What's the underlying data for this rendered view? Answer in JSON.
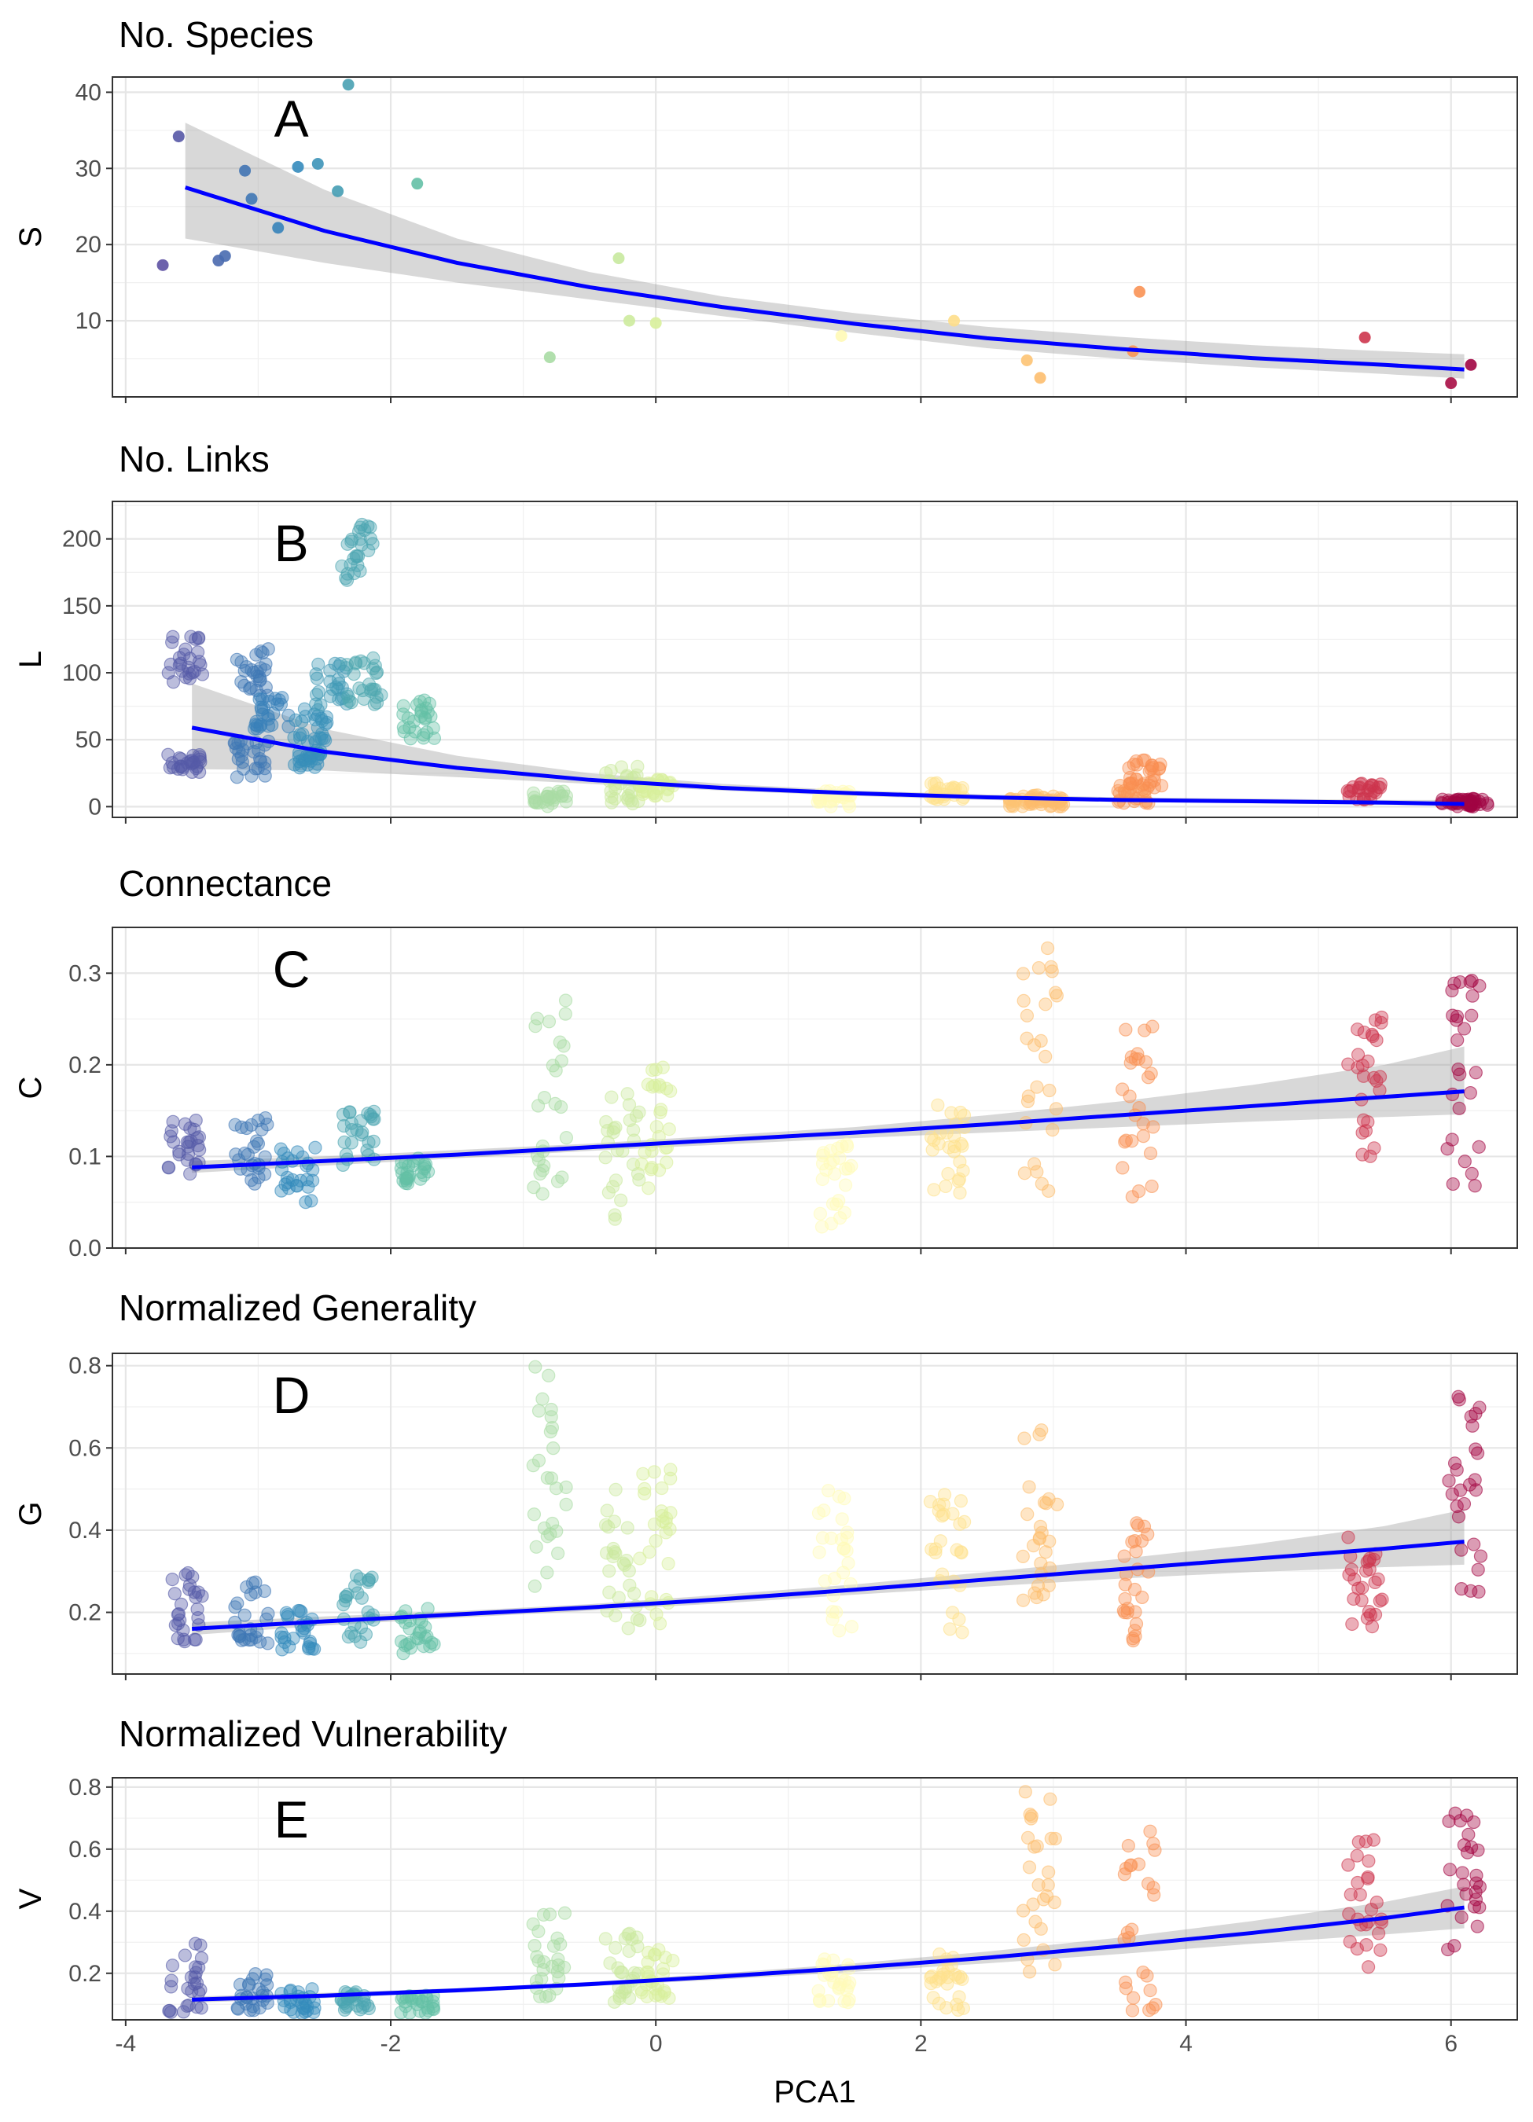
{
  "chart_data": [
    {
      "type": "scatter",
      "panel": "A",
      "title": "No. Species",
      "ylabel": "S",
      "xlabel": "",
      "xlim": [
        -4.1,
        6.5
      ],
      "ylim": [
        0,
        42
      ],
      "yticks": [
        10,
        20,
        30,
        40
      ],
      "xticks": [
        -4,
        -2,
        0,
        2,
        4,
        6
      ],
      "grid": true,
      "x_tick_labels_shown": false,
      "smooth": {
        "x": [
          -3.55,
          -2.5,
          -1.5,
          -0.5,
          0.5,
          1.5,
          2.5,
          3.5,
          4.5,
          5.5,
          6.1
        ],
        "y": [
          27.5,
          21.8,
          17.6,
          14.4,
          11.8,
          9.6,
          7.7,
          6.3,
          5.1,
          4.2,
          3.6
        ],
        "lower": [
          20.8,
          17.6,
          15.0,
          12.8,
          10.6,
          8.4,
          6.4,
          5.0,
          3.9,
          3.0,
          2.4
        ],
        "upper": [
          36.0,
          27.2,
          20.8,
          16.4,
          13.2,
          11.0,
          9.2,
          7.9,
          6.8,
          6.0,
          5.6
        ],
        "color": "#0000ff"
      },
      "points": [
        [
          -3.72,
          17.3
        ],
        [
          -3.6,
          34.2
        ],
        [
          -3.3,
          17.9
        ],
        [
          -3.25,
          18.5
        ],
        [
          -3.1,
          29.7
        ],
        [
          -3.05,
          26.0
        ],
        [
          -2.85,
          22.2
        ],
        [
          -2.7,
          30.2
        ],
        [
          -2.55,
          30.6
        ],
        [
          -2.4,
          27.0
        ],
        [
          -2.32,
          41.0
        ],
        [
          -1.8,
          28.0
        ],
        [
          -0.8,
          5.2
        ],
        [
          -0.28,
          18.2
        ],
        [
          -0.2,
          10.0
        ],
        [
          0.0,
          9.7
        ],
        [
          1.4,
          8.0
        ],
        [
          2.25,
          10.0
        ],
        [
          2.8,
          4.8
        ],
        [
          2.9,
          2.5
        ],
        [
          3.6,
          6.0
        ],
        [
          3.65,
          13.8
        ],
        [
          5.35,
          7.8
        ],
        [
          6.0,
          1.8
        ],
        [
          6.15,
          4.2
        ]
      ]
    },
    {
      "type": "scatter",
      "panel": "B",
      "title": "No. Links",
      "ylabel": "L",
      "xlabel": "",
      "xlim": [
        -4.1,
        6.5
      ],
      "ylim": [
        -8,
        228
      ],
      "yticks": [
        0,
        50,
        100,
        150,
        200
      ],
      "xticks": [
        -4,
        -2,
        0,
        2,
        4,
        6
      ],
      "grid": true,
      "x_tick_labels_shown": false,
      "smooth": {
        "x": [
          -3.5,
          -2.5,
          -1.5,
          -0.5,
          0.5,
          1.5,
          2.5,
          3.5,
          4.5,
          5.5,
          6.1
        ],
        "y": [
          59,
          41,
          29,
          20,
          14,
          10,
          7,
          5,
          4,
          3,
          2
        ],
        "lower": [
          28,
          27,
          22,
          17,
          12,
          8,
          5,
          3.5,
          2.5,
          1.5,
          0.5
        ],
        "upper": [
          92,
          58,
          38,
          25,
          17,
          12,
          9,
          7,
          6,
          5,
          5
        ],
        "color": "#0000ff"
      },
      "clusters": [
        {
          "x": -3.55,
          "y_range": [
            25,
            40
          ]
        },
        {
          "x": -3.55,
          "y_range": [
            90,
            130
          ]
        },
        {
          "x": -3.05,
          "y_range": [
            22,
            50
          ]
        },
        {
          "x": -3.05,
          "y_range": [
            82,
            118
          ]
        },
        {
          "x": -2.9,
          "y_range": [
            58,
            82
          ]
        },
        {
          "x": -2.65,
          "y_range": [
            28,
            42
          ]
        },
        {
          "x": -2.6,
          "y_range": [
            48,
            75
          ]
        },
        {
          "x": -2.45,
          "y_range": [
            75,
            108
          ]
        },
        {
          "x": -2.2,
          "y_range": [
            76,
            112
          ]
        },
        {
          "x": -2.25,
          "y_range": [
            168,
            218
          ]
        },
        {
          "x": -1.8,
          "y_range": [
            50,
            80
          ]
        },
        {
          "x": -0.8,
          "y_range": [
            0,
            12
          ]
        },
        {
          "x": -0.25,
          "y_range": [
            2,
            30
          ]
        },
        {
          "x": 0.0,
          "y_range": [
            8,
            22
          ]
        },
        {
          "x": 1.35,
          "y_range": [
            0,
            12
          ]
        },
        {
          "x": 2.2,
          "y_range": [
            5,
            18
          ]
        },
        {
          "x": 2.8,
          "y_range": [
            0,
            10
          ]
        },
        {
          "x": 2.95,
          "y_range": [
            0,
            8
          ]
        },
        {
          "x": 3.6,
          "y_range": [
            2,
            18
          ]
        },
        {
          "x": 3.7,
          "y_range": [
            12,
            35
          ]
        },
        {
          "x": 5.35,
          "y_range": [
            5,
            18
          ]
        },
        {
          "x": 6.05,
          "y_range": [
            0,
            6
          ]
        },
        {
          "x": 6.15,
          "y_range": [
            0,
            6
          ]
        }
      ]
    },
    {
      "type": "scatter",
      "panel": "C",
      "title": "Connectance",
      "ylabel": "C",
      "xlabel": "",
      "xlim": [
        -4.1,
        6.5
      ],
      "ylim": [
        0,
        0.35
      ],
      "yticks": [
        0.0,
        0.1,
        0.2,
        0.3
      ],
      "ytick_labels": [
        "0.0",
        "0.1",
        "0.2",
        "0.3"
      ],
      "xticks": [
        -4,
        -2,
        0,
        2,
        4,
        6
      ],
      "grid": true,
      "x_tick_labels_shown": false,
      "smooth": {
        "x": [
          -3.5,
          -2.5,
          -1.5,
          -0.5,
          0.5,
          1.5,
          2.5,
          3.5,
          4.5,
          5.5,
          6.1
        ],
        "y": [
          0.088,
          0.095,
          0.102,
          0.11,
          0.118,
          0.126,
          0.135,
          0.145,
          0.155,
          0.165,
          0.171
        ],
        "lower": [
          0.082,
          0.09,
          0.098,
          0.106,
          0.113,
          0.12,
          0.126,
          0.132,
          0.138,
          0.143,
          0.146
        ],
        "upper": [
          0.095,
          0.1,
          0.107,
          0.114,
          0.123,
          0.132,
          0.145,
          0.16,
          0.178,
          0.2,
          0.22
        ],
        "color": "#0000ff"
      },
      "clusters": [
        {
          "x": -3.55,
          "y_range": [
            0.08,
            0.14
          ]
        },
        {
          "x": -3.05,
          "y_range": [
            0.07,
            0.145
          ]
        },
        {
          "x": -2.7,
          "y_range": [
            0.05,
            0.11
          ]
        },
        {
          "x": -2.25,
          "y_range": [
            0.09,
            0.15
          ]
        },
        {
          "x": -1.8,
          "y_range": [
            0.07,
            0.1
          ]
        },
        {
          "x": -0.8,
          "y_range": [
            0.04,
            0.28
          ]
        },
        {
          "x": -0.25,
          "y_range": [
            0.03,
            0.17
          ]
        },
        {
          "x": 0.0,
          "y_range": [
            0.06,
            0.2
          ]
        },
        {
          "x": 1.35,
          "y_range": [
            0.015,
            0.12
          ]
        },
        {
          "x": 2.2,
          "y_range": [
            0.06,
            0.16
          ]
        },
        {
          "x": 2.9,
          "y_range": [
            0.04,
            0.333
          ]
        },
        {
          "x": 3.65,
          "y_range": [
            0.055,
            0.25
          ]
        },
        {
          "x": 5.35,
          "y_range": [
            0.095,
            0.265
          ]
        },
        {
          "x": 6.1,
          "y_range": [
            0.0625,
            0.3125
          ]
        }
      ]
    },
    {
      "type": "scatter",
      "panel": "D",
      "title": "Normalized Generality",
      "ylabel": "G",
      "xlabel": "",
      "xlim": [
        -4.1,
        6.5
      ],
      "ylim": [
        0.05,
        0.83
      ],
      "yticks": [
        0.2,
        0.4,
        0.6,
        0.8
      ],
      "ytick_labels": [
        "0.2",
        "0.4",
        "0.6",
        "0.8"
      ],
      "xticks": [
        -4,
        -2,
        0,
        2,
        4,
        6
      ],
      "grid": true,
      "x_tick_labels_shown": false,
      "smooth": {
        "x": [
          -3.5,
          -2.5,
          -1.5,
          -0.5,
          0.5,
          1.5,
          2.5,
          3.5,
          4.5,
          5.5,
          6.1
        ],
        "y": [
          0.16,
          0.178,
          0.195,
          0.212,
          0.232,
          0.255,
          0.28,
          0.305,
          0.33,
          0.355,
          0.372
        ],
        "lower": [
          0.145,
          0.168,
          0.187,
          0.204,
          0.222,
          0.243,
          0.263,
          0.282,
          0.298,
          0.31,
          0.316
        ],
        "upper": [
          0.175,
          0.19,
          0.203,
          0.22,
          0.243,
          0.268,
          0.298,
          0.33,
          0.365,
          0.41,
          0.45
        ],
        "color": "#0000ff"
      },
      "clusters": [
        {
          "x": -3.55,
          "y_range": [
            0.12,
            0.3
          ]
        },
        {
          "x": -3.05,
          "y_range": [
            0.12,
            0.28
          ]
        },
        {
          "x": -2.7,
          "y_range": [
            0.1,
            0.22
          ]
        },
        {
          "x": -2.25,
          "y_range": [
            0.12,
            0.29
          ]
        },
        {
          "x": -1.8,
          "y_range": [
            0.1,
            0.22
          ]
        },
        {
          "x": -0.8,
          "y_range": [
            0.25,
            0.8
          ]
        },
        {
          "x": -0.25,
          "y_range": [
            0.1,
            0.5
          ]
        },
        {
          "x": 0.0,
          "y_range": [
            0.15,
            0.55
          ]
        },
        {
          "x": 1.35,
          "y_range": [
            0.125,
            0.5
          ]
        },
        {
          "x": 2.2,
          "y_range": [
            0.15,
            0.5
          ]
        },
        {
          "x": 2.9,
          "y_range": [
            0.2,
            0.67
          ]
        },
        {
          "x": 3.65,
          "y_range": [
            0.12,
            0.42
          ]
        },
        {
          "x": 5.35,
          "y_range": [
            0.15,
            0.4
          ]
        },
        {
          "x": 6.1,
          "y_range": [
            0.25,
            0.75
          ]
        }
      ]
    },
    {
      "type": "scatter",
      "panel": "E",
      "title": "Normalized Vulnerability",
      "ylabel": "V",
      "xlabel": "PCA1",
      "xlim": [
        -4.1,
        6.5
      ],
      "ylim": [
        0.05,
        0.83
      ],
      "yticks": [
        0.2,
        0.4,
        0.6,
        0.8
      ],
      "ytick_labels": [
        "0.2",
        "0.4",
        "0.6",
        "0.8"
      ],
      "xticks": [
        -4,
        -2,
        0,
        2,
        4,
        6
      ],
      "xtick_labels": [
        "-4",
        "-2",
        "0",
        "2",
        "4",
        "6"
      ],
      "grid": true,
      "x_tick_labels_shown": true,
      "smooth": {
        "x": [
          -3.5,
          -2.5,
          -1.5,
          -0.5,
          0.5,
          1.5,
          2.5,
          3.5,
          4.5,
          5.5,
          6.1
        ],
        "y": [
          0.115,
          0.128,
          0.145,
          0.165,
          0.19,
          0.218,
          0.25,
          0.288,
          0.33,
          0.378,
          0.412
        ],
        "lower": [
          0.105,
          0.12,
          0.138,
          0.158,
          0.18,
          0.205,
          0.232,
          0.262,
          0.295,
          0.325,
          0.345
        ],
        "upper": [
          0.125,
          0.137,
          0.152,
          0.172,
          0.2,
          0.232,
          0.27,
          0.315,
          0.368,
          0.43,
          0.48
        ],
        "color": "#0000ff"
      },
      "clusters": [
        {
          "x": -3.55,
          "y_range": [
            0.07,
            0.3
          ]
        },
        {
          "x": -3.05,
          "y_range": [
            0.08,
            0.2
          ]
        },
        {
          "x": -2.7,
          "y_range": [
            0.07,
            0.15
          ]
        },
        {
          "x": -2.25,
          "y_range": [
            0.08,
            0.14
          ]
        },
        {
          "x": -1.8,
          "y_range": [
            0.07,
            0.13
          ]
        },
        {
          "x": -0.8,
          "y_range": [
            0.12,
            0.4
          ]
        },
        {
          "x": -0.25,
          "y_range": [
            0.1,
            0.35
          ]
        },
        {
          "x": 0.0,
          "y_range": [
            0.12,
            0.28
          ]
        },
        {
          "x": 1.35,
          "y_range": [
            0.1,
            0.25
          ]
        },
        {
          "x": 2.2,
          "y_range": [
            0.08,
            0.27
          ]
        },
        {
          "x": 2.9,
          "y_range": [
            0.2,
            0.8
          ]
        },
        {
          "x": 3.65,
          "y_range": [
            0.08,
            0.67
          ]
        },
        {
          "x": 5.35,
          "y_range": [
            0.22,
            0.63
          ]
        },
        {
          "x": 6.1,
          "y_range": [
            0.25,
            0.75
          ]
        }
      ]
    }
  ]
}
